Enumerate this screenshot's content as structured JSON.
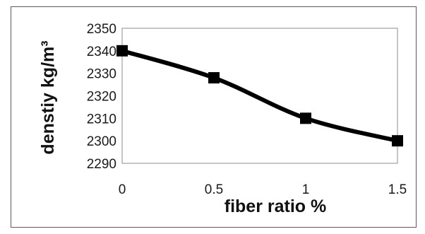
{
  "chart_data": {
    "type": "line",
    "title": "",
    "xlabel": "fiber ratio %",
    "ylabel": "denstiy kg/m³",
    "x": [
      0,
      0.5,
      1,
      1.5
    ],
    "x_tick_labels": [
      "0",
      "0.5",
      "1",
      "1.5"
    ],
    "y_tick_labels": [
      "2290",
      "2300",
      "2310",
      "2320",
      "2330",
      "2340",
      "2350"
    ],
    "series": [
      {
        "values": [
          2340,
          2328,
          2310,
          2300
        ],
        "color": "#000000",
        "marker": "square"
      }
    ],
    "xlim": [
      0,
      1.5
    ],
    "ylim": [
      2290,
      2350
    ],
    "y_ticks": [
      2290,
      2300,
      2310,
      2320,
      2330,
      2340,
      2350
    ],
    "grid": false,
    "smooth": true,
    "legend": "none"
  }
}
